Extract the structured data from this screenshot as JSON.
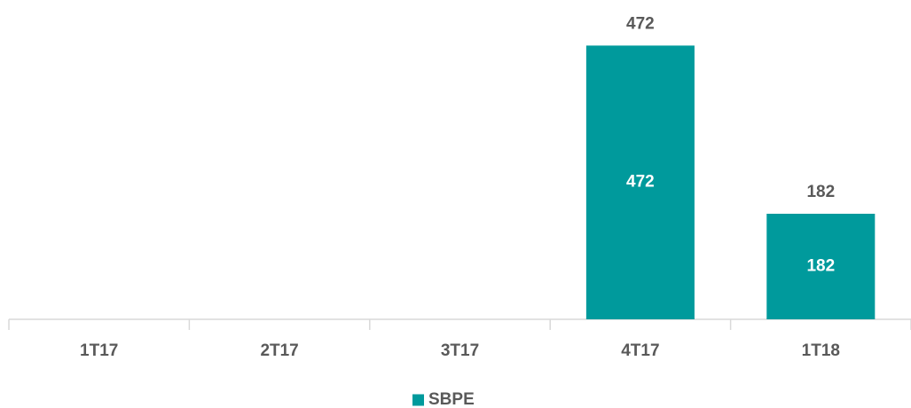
{
  "chart_data": {
    "type": "bar",
    "categories": [
      "1T17",
      "2T17",
      "3T17",
      "4T17",
      "1T18"
    ],
    "series": [
      {
        "name": "SBPE",
        "color": "#009a9c",
        "values": [
          null,
          null,
          null,
          472,
          182
        ]
      }
    ],
    "ylim": [
      0,
      520
    ],
    "legend": "bottom"
  }
}
